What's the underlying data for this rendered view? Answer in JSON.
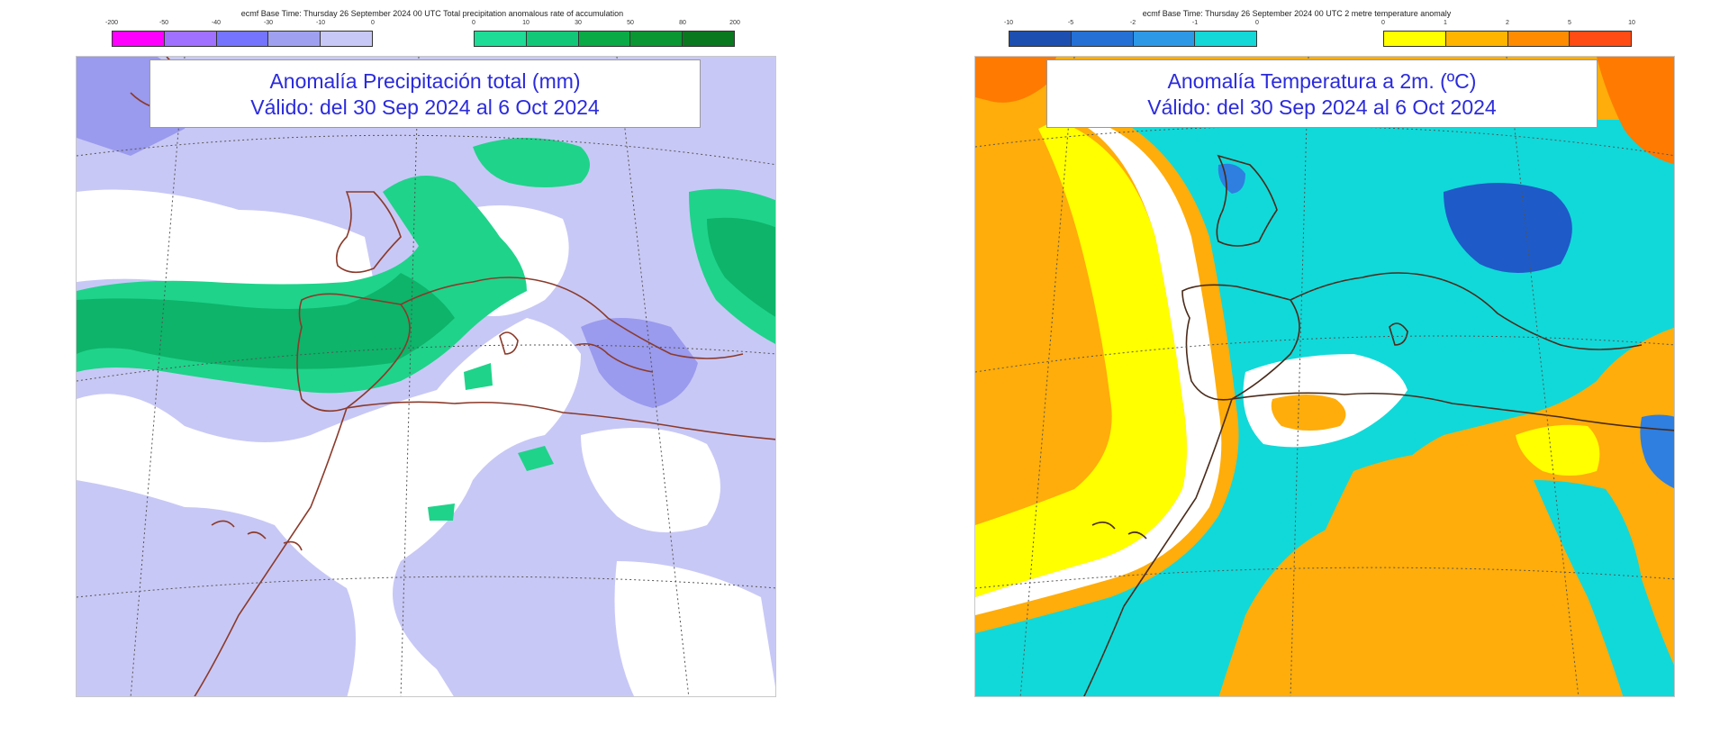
{
  "panels": {
    "precip": {
      "header": "ecmf  Base Time: Thursday 26 September 2024 00 UTC Total precipitation anomalous rate of accumulation",
      "title_line1": "Anomalía Precipitación total (mm)",
      "title_line2": "Válido: del 30 Sep 2024 al 6 Oct 2024",
      "legend_left": {
        "ticks": [
          "-200",
          "-50",
          "-40",
          "-30",
          "-10",
          "0"
        ],
        "colors": [
          "#ff00ff",
          "#a070ff",
          "#7474ff",
          "#a0a0f0",
          "#c8c8f6"
        ]
      },
      "legend_right": {
        "ticks": [
          "0",
          "10",
          "30",
          "50",
          "80",
          "200"
        ],
        "colors": [
          "#1edc96",
          "#12c878",
          "#0aaa46",
          "#0a9632",
          "#0a781e"
        ]
      },
      "colors": {
        "dry": "#c8c8f6",
        "very_dry": "#9a9aee",
        "neutral": "#ffffff",
        "wet": "#1fd38a",
        "very_wet": "#0db469",
        "coast": "#8b3a2a"
      }
    },
    "temp": {
      "header": "ecmf  Base Time: Thursday 26 September 2024 00 UTC 2 metre temperature anomaly",
      "title_line1": "Anomalía Temperatura a 2m. (ºC)",
      "title_line2": "Válido: del 30 Sep 2024 al 6 Oct 2024",
      "legend_left": {
        "ticks": [
          "-10",
          "-5",
          "-2",
          "-1",
          "0"
        ],
        "colors": [
          "#1c4fb0",
          "#2470d4",
          "#2d98e6",
          "#14d7d7"
        ]
      },
      "legend_right": {
        "ticks": [
          "0",
          "1",
          "2",
          "5",
          "10"
        ],
        "colors": [
          "#ffff00",
          "#ffb400",
          "#ff8c00",
          "#ff4b14"
        ]
      },
      "colors": {
        "cold1": "#11d9d9",
        "cold2": "#2e7fe0",
        "cold3": "#1e5ac8",
        "neutral": "#ffffff",
        "warm1": "#ffff00",
        "warm2": "#ffad0a",
        "warm3": "#ff7a00",
        "coast": "#4a2a1a"
      }
    }
  }
}
